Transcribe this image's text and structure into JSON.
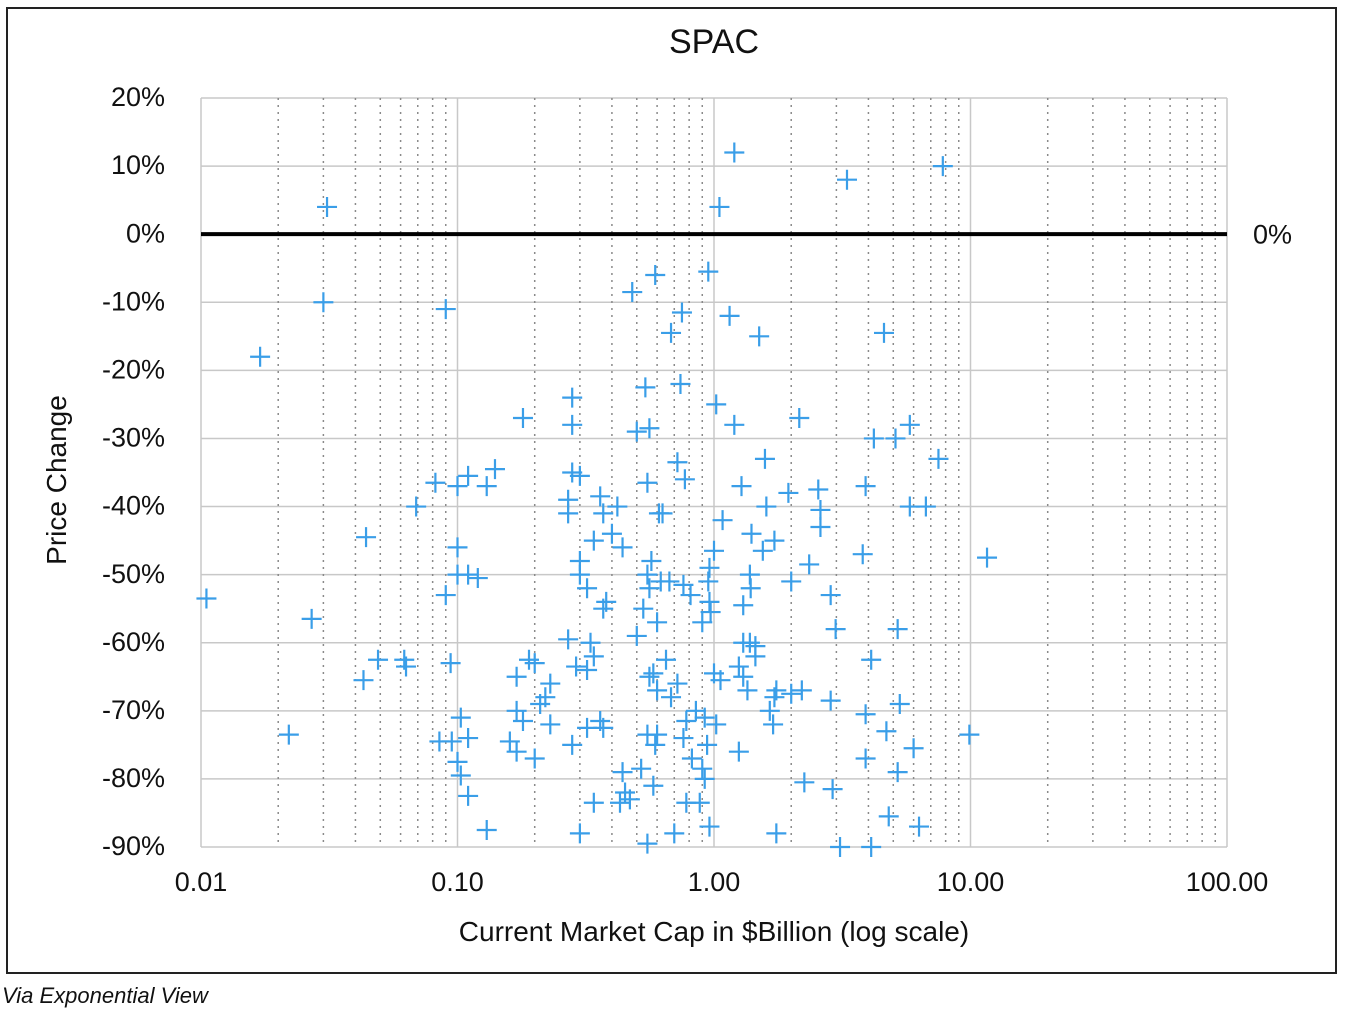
{
  "chart_data": {
    "type": "scatter",
    "title": "SPAC",
    "xlabel": "Current Market Cap in $Billion (log scale)",
    "ylabel": "Price Change",
    "x_scale": "log",
    "xlim": [
      0.01,
      100
    ],
    "ylim": [
      -90,
      20
    ],
    "x_ticks": [
      "0.01",
      "0.10",
      "1.00",
      "10.00",
      "100.00"
    ],
    "y_ticks": [
      "20%",
      "10%",
      "0%",
      "-10%",
      "-20%",
      "-30%",
      "-40%",
      "-50%",
      "-60%",
      "-70%",
      "-80%",
      "-90%"
    ],
    "reference_line": {
      "y": 0,
      "label": "0%"
    },
    "grid": "on",
    "legend": "none",
    "marker": "plus",
    "point_color": "#3a9ee8",
    "points": [
      [
        1.2,
        12
      ],
      [
        3.3,
        8
      ],
      [
        7.8,
        10
      ],
      [
        1.05,
        4
      ],
      [
        0.031,
        4
      ],
      [
        0.95,
        -5.5
      ],
      [
        0.59,
        -6
      ],
      [
        0.48,
        -8.5
      ],
      [
        0.03,
        -10
      ],
      [
        0.09,
        -11
      ],
      [
        0.75,
        -11.5
      ],
      [
        1.15,
        -12
      ],
      [
        0.68,
        -14.5
      ],
      [
        1.5,
        -15
      ],
      [
        4.6,
        -14.5
      ],
      [
        0.017,
        -18
      ],
      [
        0.54,
        -22.5
      ],
      [
        0.74,
        -22
      ],
      [
        0.18,
        -27
      ],
      [
        0.28,
        -24
      ],
      [
        0.28,
        -28
      ],
      [
        1.02,
        -25
      ],
      [
        2.15,
        -27
      ],
      [
        1.2,
        -28
      ],
      [
        0.5,
        -29
      ],
      [
        0.56,
        -28.5
      ],
      [
        4.2,
        -30
      ],
      [
        5.1,
        -30
      ],
      [
        5.8,
        -28
      ],
      [
        0.28,
        -35
      ],
      [
        0.3,
        -35.5
      ],
      [
        0.13,
        -37
      ],
      [
        0.14,
        -34.5
      ],
      [
        0.11,
        -35.5
      ],
      [
        0.1,
        -37
      ],
      [
        0.082,
        -36.5
      ],
      [
        0.069,
        -40
      ],
      [
        0.044,
        -44.5
      ],
      [
        0.27,
        -39
      ],
      [
        0.27,
        -41
      ],
      [
        0.36,
        -38.5
      ],
      [
        0.37,
        -41
      ],
      [
        0.42,
        -40
      ],
      [
        0.4,
        -44
      ],
      [
        0.34,
        -45
      ],
      [
        0.44,
        -46
      ],
      [
        0.55,
        -36.5
      ],
      [
        0.61,
        -41
      ],
      [
        0.63,
        -41
      ],
      [
        0.72,
        -33.5
      ],
      [
        0.77,
        -36
      ],
      [
        1.28,
        -37
      ],
      [
        1.08,
        -42
      ],
      [
        1.4,
        -44
      ],
      [
        1.58,
        -33
      ],
      [
        1.6,
        -40
      ],
      [
        1.72,
        -45
      ],
      [
        1.95,
        -38
      ],
      [
        2.55,
        -37.5
      ],
      [
        2.6,
        -40.5
      ],
      [
        2.6,
        -43
      ],
      [
        3.9,
        -37
      ],
      [
        5.8,
        -40
      ],
      [
        6.7,
        -40
      ],
      [
        7.5,
        -33
      ],
      [
        11.6,
        -47.5
      ],
      [
        3.8,
        -47
      ],
      [
        2.35,
        -48.5
      ],
      [
        2.0,
        -51
      ],
      [
        2.85,
        -53
      ],
      [
        1.55,
        -46.5
      ],
      [
        1.38,
        -50
      ],
      [
        1.39,
        -52
      ],
      [
        1.3,
        -54.5
      ],
      [
        1.0,
        -46.5
      ],
      [
        0.96,
        -49
      ],
      [
        0.95,
        -51
      ],
      [
        0.96,
        -54
      ],
      [
        0.97,
        -55.5
      ],
      [
        0.9,
        -57
      ],
      [
        0.81,
        -53
      ],
      [
        0.76,
        -51.5
      ],
      [
        0.67,
        -51
      ],
      [
        0.62,
        -51
      ],
      [
        0.57,
        -48
      ],
      [
        0.55,
        -50
      ],
      [
        0.56,
        -52
      ],
      [
        0.53,
        -55
      ],
      [
        0.6,
        -57
      ],
      [
        0.5,
        -59
      ],
      [
        0.38,
        -54
      ],
      [
        0.37,
        -55
      ],
      [
        0.32,
        -52
      ],
      [
        0.3,
        -48
      ],
      [
        0.3,
        -50
      ],
      [
        0.1,
        -46
      ],
      [
        0.1,
        -50
      ],
      [
        0.11,
        -50
      ],
      [
        0.12,
        -50.5
      ],
      [
        0.09,
        -53
      ],
      [
        0.0105,
        -53.5
      ],
      [
        0.027,
        -56.5
      ],
      [
        0.27,
        -59.5
      ],
      [
        0.33,
        -60
      ],
      [
        0.34,
        -62
      ],
      [
        0.29,
        -63.5
      ],
      [
        0.32,
        -64
      ],
      [
        0.19,
        -62.5
      ],
      [
        0.2,
        -63
      ],
      [
        0.17,
        -65
      ],
      [
        0.23,
        -66
      ],
      [
        0.22,
        -68
      ],
      [
        0.21,
        -69
      ],
      [
        0.094,
        -63
      ],
      [
        0.062,
        -62.5
      ],
      [
        0.063,
        -63.5
      ],
      [
        0.049,
        -62.5
      ],
      [
        0.043,
        -65.5
      ],
      [
        0.65,
        -62.5
      ],
      [
        0.58,
        -64.5
      ],
      [
        0.56,
        -65
      ],
      [
        0.6,
        -67
      ],
      [
        0.72,
        -66
      ],
      [
        0.68,
        -68
      ],
      [
        1.0,
        -64.5
      ],
      [
        1.06,
        -65.5
      ],
      [
        1.25,
        -63.5
      ],
      [
        1.3,
        -65
      ],
      [
        1.35,
        -67
      ],
      [
        1.3,
        -60
      ],
      [
        1.38,
        -60
      ],
      [
        1.45,
        -60.5
      ],
      [
        1.45,
        -62
      ],
      [
        1.75,
        -67
      ],
      [
        1.72,
        -68
      ],
      [
        2.0,
        -67.5
      ],
      [
        2.2,
        -67
      ],
      [
        2.85,
        -68.5
      ],
      [
        2.98,
        -58
      ],
      [
        5.2,
        -58
      ],
      [
        4.1,
        -62.5
      ],
      [
        5.3,
        -69
      ],
      [
        3.9,
        -70.5
      ],
      [
        4.7,
        -73
      ],
      [
        6.0,
        -75.5
      ],
      [
        9.9,
        -73.5
      ],
      [
        3.9,
        -77
      ],
      [
        5.2,
        -79
      ],
      [
        2.25,
        -80.5
      ],
      [
        2.9,
        -81.5
      ],
      [
        4.8,
        -85.5
      ],
      [
        6.3,
        -87
      ],
      [
        1.7,
        -72
      ],
      [
        1.65,
        -70
      ],
      [
        1.25,
        -76
      ],
      [
        1.02,
        -72
      ],
      [
        0.92,
        -71
      ],
      [
        0.94,
        -75
      ],
      [
        0.85,
        -70
      ],
      [
        0.78,
        -71.5
      ],
      [
        0.76,
        -74
      ],
      [
        0.82,
        -77
      ],
      [
        0.9,
        -78.5
      ],
      [
        0.92,
        -80
      ],
      [
        0.88,
        -83.5
      ],
      [
        0.78,
        -83.5
      ],
      [
        0.6,
        -73.5
      ],
      [
        0.59,
        -75
      ],
      [
        0.55,
        -73.5
      ],
      [
        0.58,
        -81
      ],
      [
        0.52,
        -78.5
      ],
      [
        0.44,
        -79
      ],
      [
        0.45,
        -82
      ],
      [
        0.47,
        -83
      ],
      [
        0.43,
        -83.5
      ],
      [
        0.34,
        -83.5
      ],
      [
        0.37,
        -72.5
      ],
      [
        0.32,
        -72.5
      ],
      [
        0.36,
        -71.5
      ],
      [
        0.28,
        -75
      ],
      [
        0.23,
        -72
      ],
      [
        0.17,
        -70
      ],
      [
        0.18,
        -71.5
      ],
      [
        0.16,
        -74.5
      ],
      [
        0.17,
        -76
      ],
      [
        0.2,
        -77
      ],
      [
        0.103,
        -71
      ],
      [
        0.095,
        -74.5
      ],
      [
        0.085,
        -74.5
      ],
      [
        0.11,
        -74
      ],
      [
        0.1,
        -77.5
      ],
      [
        0.103,
        -79.5
      ],
      [
        0.11,
        -82.5
      ],
      [
        0.13,
        -87.5
      ],
      [
        0.3,
        -88
      ],
      [
        0.55,
        -89.5
      ],
      [
        0.7,
        -88
      ],
      [
        0.96,
        -87
      ],
      [
        1.75,
        -88
      ],
      [
        3.1,
        -90
      ],
      [
        4.1,
        -90
      ],
      [
        0.022,
        -73.5
      ]
    ]
  },
  "caption": "Via Exponential View"
}
